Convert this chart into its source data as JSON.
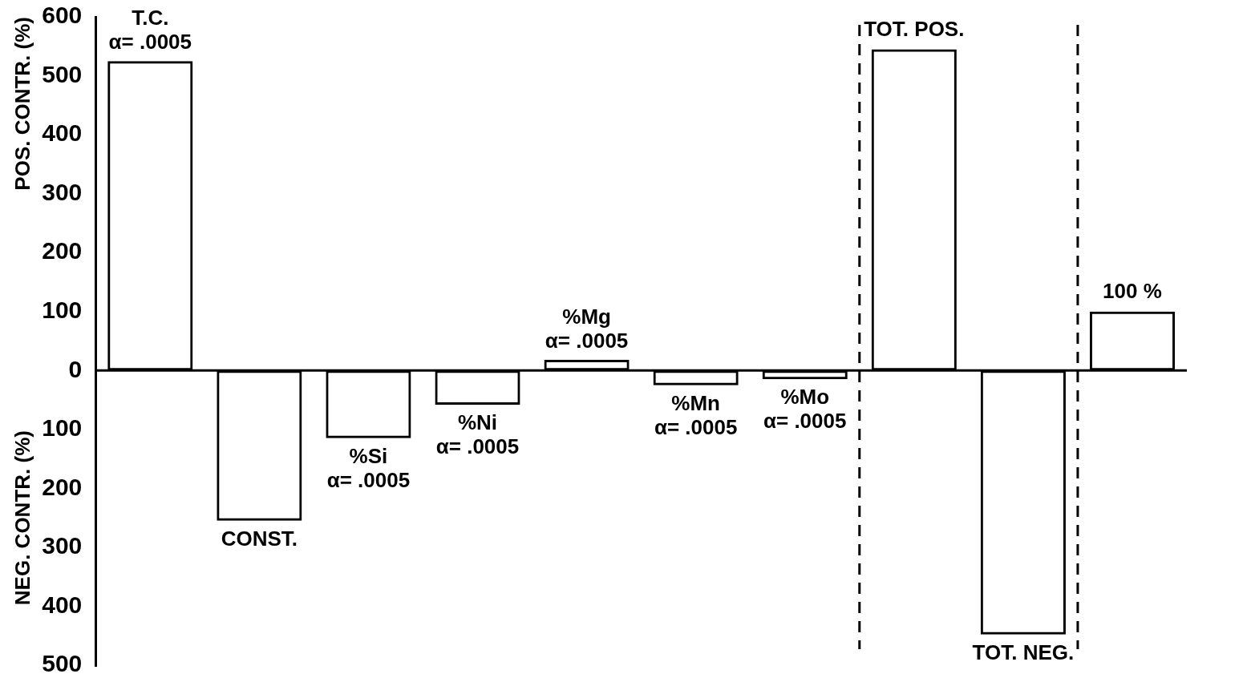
{
  "chart_data": {
    "type": "bar",
    "ylabel": "POS. CONTR. (%)",
    "categories": [
      "T.C.",
      "CONST.",
      "%Si",
      "%Ni",
      "%Mg",
      "%Mn",
      "%Mo",
      "TOT. POS.",
      "TOT. NEG.",
      "100 %"
    ],
    "values": [
      525,
      -255,
      -115,
      -58,
      18,
      -25,
      -15,
      545,
      -448,
      100
    ],
    "color": "#000000",
    "ylim": [
      -500,
      600
    ],
    "yticks": [
      {
        "value": -500,
        "label": "500"
      },
      {
        "value": -400,
        "label": "400"
      },
      {
        "value": -300,
        "label": "300"
      },
      {
        "value": -200,
        "label": "200"
      },
      {
        "value": -100,
        "label": "100"
      },
      0,
      100,
      200,
      300,
      400,
      500,
      600
    ],
    "annotations": [
      "NEG. CONTR. (%)",
      {
        "text": "α= .0005",
        "x": "T.C.",
        "y": 525
      },
      {
        "text": "α= .0005",
        "x": "%Si",
        "y": -115
      },
      {
        "text": "α= .0005",
        "x": "%Ni",
        "y": -58
      },
      {
        "text": "α= .0005",
        "x": "%Mg",
        "y": 18
      },
      {
        "text": "α= .0005",
        "x": "%Mn",
        "y": -25
      },
      {
        "text": "α= .0005",
        "x": "%Mo",
        "y": -15
      }
    ],
    "grid": false,
    "legend": false,
    "tick_labels": "y"
  }
}
